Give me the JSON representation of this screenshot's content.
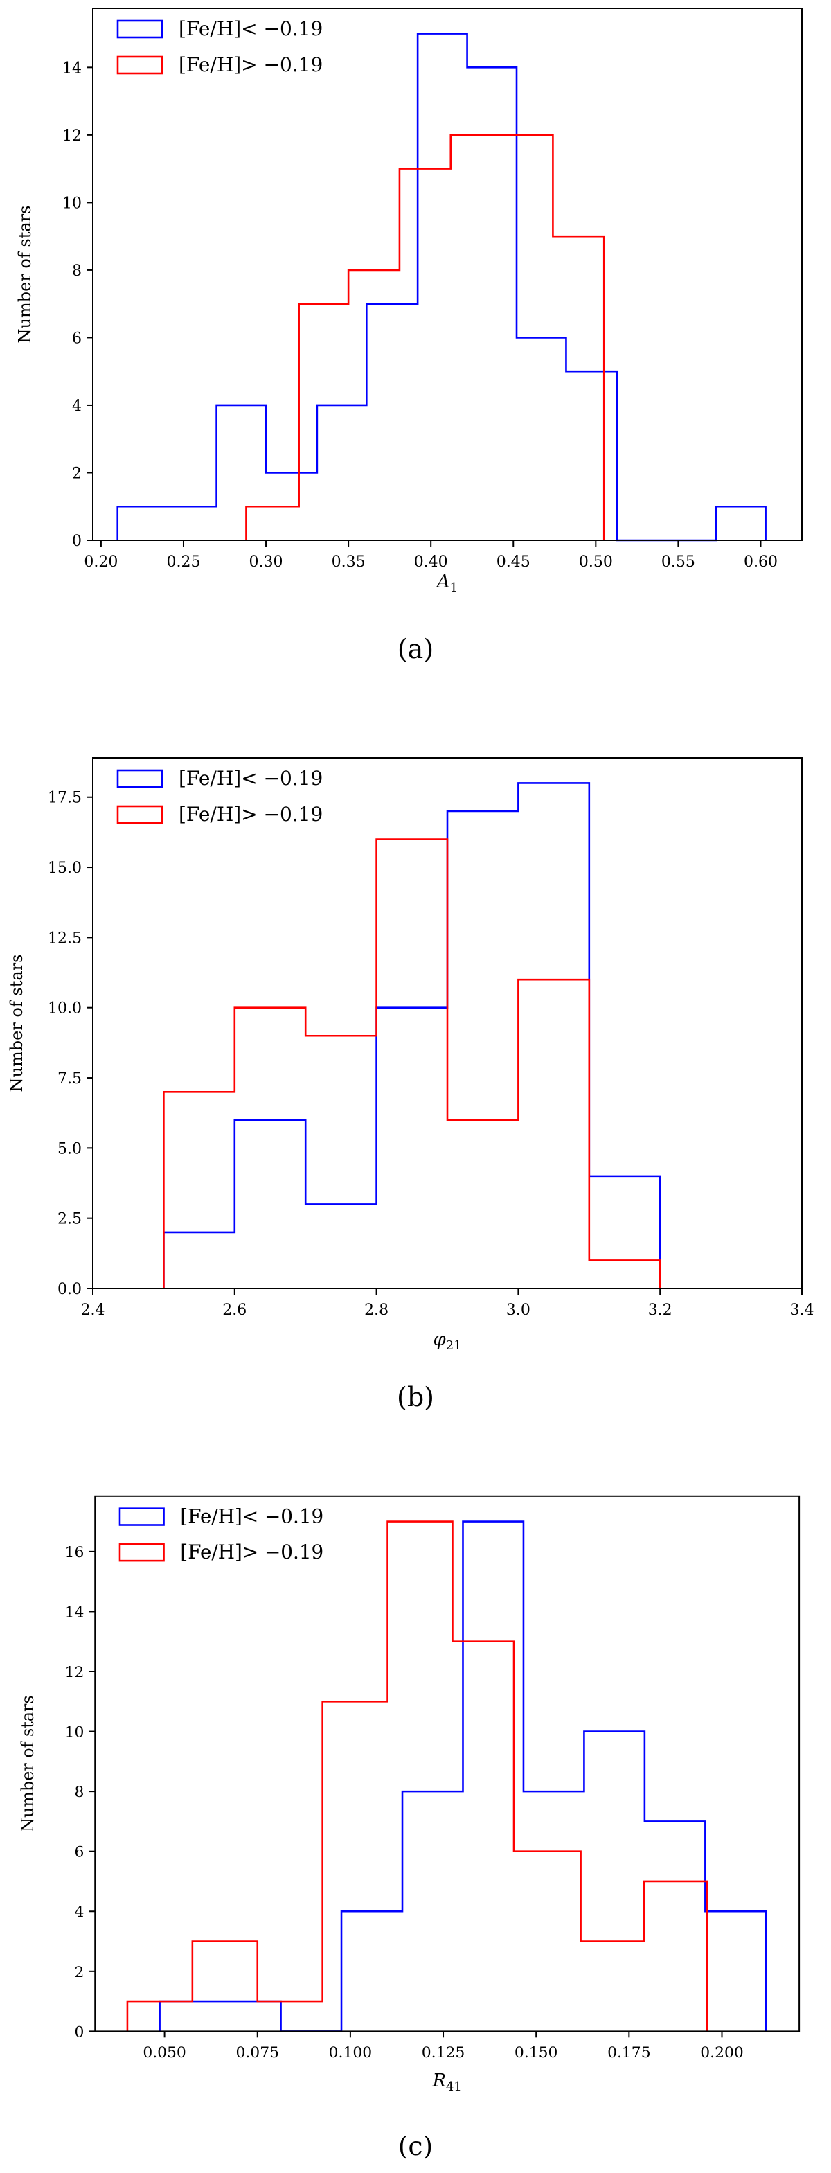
{
  "chart_data": [
    {
      "type": "histogram",
      "caption": "(a)",
      "xlabel": "A",
      "xlabel_sub": "1",
      "ylabel": "Number of stars",
      "xlim": [
        0.195,
        0.625
      ],
      "ylim": [
        0,
        15.75
      ],
      "xticks": [
        0.2,
        0.25,
        0.3,
        0.35,
        0.4,
        0.45,
        0.5,
        0.55,
        0.6
      ],
      "xtick_labels": [
        "0.20",
        "0.25",
        "0.30",
        "0.35",
        "0.40",
        "0.45",
        "0.50",
        "0.55",
        "0.60"
      ],
      "yticks": [
        0,
        2,
        4,
        6,
        8,
        10,
        12,
        14
      ],
      "ytick_labels": [
        "0",
        "2",
        "4",
        "6",
        "8",
        "10",
        "12",
        "14"
      ],
      "legend_position": "top-left",
      "series": [
        {
          "name": "[Fe/H]< −0.19",
          "color": "#0000ff",
          "edges": [
            0.21,
            0.24,
            0.27,
            0.3,
            0.331,
            0.361,
            0.392,
            0.422,
            0.452,
            0.482,
            0.513,
            0.543,
            0.573,
            0.603
          ],
          "counts": [
            1,
            1,
            4,
            2,
            4,
            7,
            15,
            14,
            6,
            5,
            0,
            0,
            1
          ]
        },
        {
          "name": "[Fe/H]> −0.19",
          "color": "#ff0000",
          "edges": [
            0.288,
            0.32,
            0.35,
            0.381,
            0.412,
            0.443,
            0.474,
            0.505
          ],
          "counts": [
            1,
            7,
            8,
            11,
            12,
            12,
            9
          ]
        }
      ]
    },
    {
      "type": "histogram",
      "caption": "(b)",
      "xlabel": "φ",
      "xlabel_sub": "21",
      "ylabel": "Number of stars",
      "xlim": [
        2.4,
        3.4
      ],
      "ylim": [
        0,
        18.9
      ],
      "xticks": [
        2.4,
        2.6,
        2.8,
        3.0,
        3.2,
        3.4
      ],
      "xtick_labels": [
        "2.4",
        "2.6",
        "2.8",
        "3.0",
        "3.2",
        "3.4"
      ],
      "yticks": [
        0,
        2.5,
        5,
        7.5,
        10,
        12.5,
        15,
        17.5
      ],
      "ytick_labels": [
        "0.0",
        "2.5",
        "5.0",
        "7.5",
        "10.0",
        "12.5",
        "15.0",
        "17.5"
      ],
      "legend_position": "top-left",
      "series": [
        {
          "name": "[Fe/H]< −0.19",
          "color": "#0000ff",
          "edges": [
            2.5,
            2.6,
            2.7,
            2.8,
            2.9,
            3.0,
            3.1,
            3.2
          ],
          "counts": [
            2,
            6,
            3,
            10,
            17,
            18,
            4
          ]
        },
        {
          "name": "[Fe/H]> −0.19",
          "color": "#ff0000",
          "edges": [
            2.5,
            2.6,
            2.7,
            2.8,
            2.9,
            3.0,
            3.1,
            3.2
          ],
          "counts": [
            7,
            10,
            9,
            16,
            6,
            11,
            1
          ]
        }
      ]
    },
    {
      "type": "histogram",
      "caption": "(c)",
      "xlabel": "R",
      "xlabel_sub": "41",
      "ylabel": "Number of stars",
      "xlim": [
        0.0313,
        0.2208
      ],
      "ylim": [
        0,
        17.85
      ],
      "xticks": [
        0.05,
        0.075,
        0.1,
        0.125,
        0.15,
        0.175,
        0.2
      ],
      "xtick_labels": [
        "0.050",
        "0.075",
        "0.100",
        "0.125",
        "0.150",
        "0.175",
        "0.200"
      ],
      "yticks": [
        0,
        2,
        4,
        6,
        8,
        10,
        12,
        14,
        16
      ],
      "ytick_labels": [
        "0",
        "2",
        "4",
        "6",
        "8",
        "10",
        "12",
        "14",
        "16"
      ],
      "legend_position": "top-left",
      "series": [
        {
          "name": "[Fe/H]< −0.19",
          "color": "#0000ff",
          "edges": [
            0.0487,
            0.065,
            0.0813,
            0.0976,
            0.114,
            0.1303,
            0.1466,
            0.1629,
            0.1792,
            0.1955,
            0.2118
          ],
          "counts": [
            1,
            1,
            0,
            4,
            8,
            17,
            8,
            10,
            7,
            4
          ]
        },
        {
          "name": "[Fe/H]> −0.19",
          "color": "#ff0000",
          "edges": [
            0.04,
            0.0575,
            0.075,
            0.0925,
            0.11,
            0.1275,
            0.144,
            0.162,
            0.179,
            0.196
          ],
          "counts": [
            1,
            3,
            1,
            11,
            17,
            13,
            6,
            3,
            5
          ]
        }
      ]
    }
  ]
}
